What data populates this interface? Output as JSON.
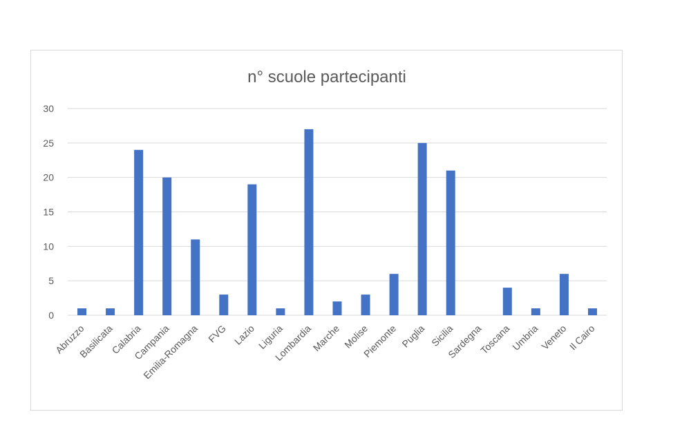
{
  "chart_data": {
    "type": "bar",
    "title": "n° scuole partecipanti",
    "categories": [
      "Abruzzo",
      "Basilicata",
      "Calabria",
      "Campania",
      "Emilia-Romagna",
      "FVG",
      "Lazio",
      "Liguria",
      "Lombardia",
      "Marche",
      "Molise",
      "Piemonte",
      "Puglia",
      "Sicilia",
      "Sardegna",
      "Toscana",
      "Umbria",
      "Veneto",
      "Il Cairo"
    ],
    "values": [
      1,
      1,
      24,
      20,
      11,
      3,
      19,
      1,
      27,
      2,
      3,
      6,
      25,
      21,
      0,
      4,
      1,
      6,
      1
    ],
    "ylim": [
      0,
      30
    ],
    "yticks": [
      0,
      5,
      10,
      15,
      20,
      25,
      30
    ],
    "xlabel": "",
    "ylabel": "",
    "grid": true,
    "legend": "none",
    "bar_color": "#4472c4",
    "grid_color": "#d9d9d9",
    "text_color": "#595959"
  }
}
